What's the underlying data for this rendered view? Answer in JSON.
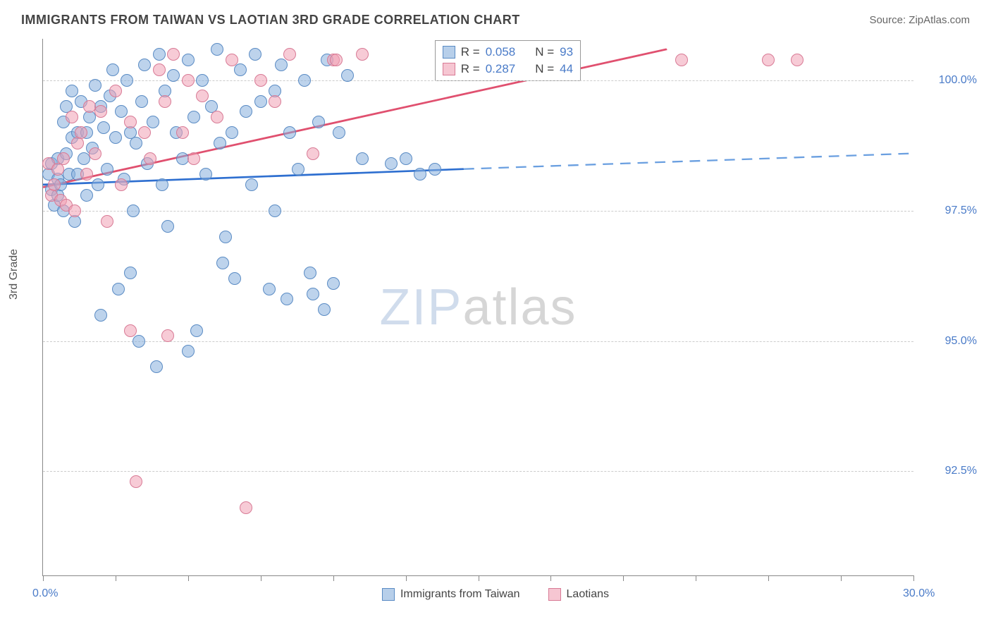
{
  "title": "IMMIGRANTS FROM TAIWAN VS LAOTIAN 3RD GRADE CORRELATION CHART",
  "source_label": "Source: ZipAtlas.com",
  "y_axis_title": "3rd Grade",
  "chart": {
    "type": "scatter",
    "xlim": [
      0,
      30
    ],
    "ylim": [
      90.5,
      100.8
    ],
    "xtick_values": [
      0,
      2.5,
      5,
      7.5,
      10,
      12.5,
      15,
      17.5,
      20,
      22.5,
      25,
      27.5,
      30
    ],
    "xtick_labels": {
      "0": "0.0%",
      "30": "30.0%"
    },
    "ytick_values": [
      92.5,
      95.0,
      97.5,
      100.0
    ],
    "ytick_labels": [
      "92.5%",
      "95.0%",
      "97.5%",
      "100.0%"
    ],
    "grid_color": "#cccccc",
    "background_color": "#ffffff",
    "axis_color": "#888888",
    "label_color": "#4a7bc8",
    "marker_size": 18,
    "series": [
      {
        "name": "Immigrants from Taiwan",
        "color_fill": "rgba(135,175,220,0.55)",
        "color_stroke": "#5a8bc4",
        "trend_color": "#2e6fd0",
        "trend_dash_color": "#6a9fe0",
        "R": "0.058",
        "N": "93",
        "trend": {
          "x0": 0,
          "y0": 98.0,
          "x1_solid": 14.5,
          "y1_solid": 98.3,
          "x1_dash": 30,
          "y1_dash": 98.6
        },
        "points": [
          [
            0.2,
            98.2
          ],
          [
            0.3,
            97.9
          ],
          [
            0.3,
            98.4
          ],
          [
            0.4,
            97.6
          ],
          [
            0.5,
            98.1
          ],
          [
            0.5,
            98.5
          ],
          [
            0.5,
            97.8
          ],
          [
            0.6,
            98.0
          ],
          [
            0.7,
            99.2
          ],
          [
            0.7,
            97.5
          ],
          [
            0.8,
            98.6
          ],
          [
            0.8,
            99.5
          ],
          [
            0.9,
            98.2
          ],
          [
            1.0,
            99.8
          ],
          [
            1.0,
            98.9
          ],
          [
            1.1,
            97.3
          ],
          [
            1.2,
            99.0
          ],
          [
            1.2,
            98.2
          ],
          [
            1.3,
            99.6
          ],
          [
            1.4,
            98.5
          ],
          [
            1.5,
            99.0
          ],
          [
            1.5,
            97.8
          ],
          [
            1.6,
            99.3
          ],
          [
            1.7,
            98.7
          ],
          [
            1.8,
            99.9
          ],
          [
            1.9,
            98.0
          ],
          [
            2.0,
            99.5
          ],
          [
            2.0,
            95.5
          ],
          [
            2.1,
            99.1
          ],
          [
            2.2,
            98.3
          ],
          [
            2.3,
            99.7
          ],
          [
            2.4,
            100.2
          ],
          [
            2.5,
            98.9
          ],
          [
            2.6,
            96.0
          ],
          [
            2.7,
            99.4
          ],
          [
            2.8,
            98.1
          ],
          [
            2.9,
            100.0
          ],
          [
            3.0,
            99.0
          ],
          [
            3.0,
            96.3
          ],
          [
            3.1,
            97.5
          ],
          [
            3.2,
            98.8
          ],
          [
            3.3,
            95.0
          ],
          [
            3.4,
            99.6
          ],
          [
            3.5,
            100.3
          ],
          [
            3.6,
            98.4
          ],
          [
            3.8,
            99.2
          ],
          [
            3.9,
            94.5
          ],
          [
            4.0,
            100.5
          ],
          [
            4.1,
            98.0
          ],
          [
            4.2,
            99.8
          ],
          [
            4.3,
            97.2
          ],
          [
            4.5,
            100.1
          ],
          [
            4.6,
            99.0
          ],
          [
            4.8,
            98.5
          ],
          [
            5.0,
            100.4
          ],
          [
            5.0,
            94.8
          ],
          [
            5.2,
            99.3
          ],
          [
            5.3,
            95.2
          ],
          [
            5.5,
            100.0
          ],
          [
            5.6,
            98.2
          ],
          [
            5.8,
            99.5
          ],
          [
            6.0,
            100.6
          ],
          [
            6.1,
            98.8
          ],
          [
            6.2,
            96.5
          ],
          [
            6.3,
            97.0
          ],
          [
            6.5,
            99.0
          ],
          [
            6.6,
            96.2
          ],
          [
            6.8,
            100.2
          ],
          [
            7.0,
            99.4
          ],
          [
            7.2,
            98.0
          ],
          [
            7.3,
            100.5
          ],
          [
            7.5,
            99.6
          ],
          [
            7.8,
            96.0
          ],
          [
            8.0,
            99.8
          ],
          [
            8.0,
            97.5
          ],
          [
            8.2,
            100.3
          ],
          [
            8.4,
            95.8
          ],
          [
            8.5,
            99.0
          ],
          [
            8.8,
            98.3
          ],
          [
            9.0,
            100.0
          ],
          [
            9.2,
            96.3
          ],
          [
            9.3,
            95.9
          ],
          [
            9.5,
            99.2
          ],
          [
            9.7,
            95.6
          ],
          [
            9.8,
            100.4
          ],
          [
            10.0,
            96.1
          ],
          [
            10.2,
            99.0
          ],
          [
            10.5,
            100.1
          ],
          [
            11.0,
            98.5
          ],
          [
            12.0,
            98.4
          ],
          [
            12.5,
            98.5
          ],
          [
            13.0,
            98.2
          ],
          [
            13.5,
            98.3
          ]
        ]
      },
      {
        "name": "Laotians",
        "color_fill": "rgba(240,160,180,0.55)",
        "color_stroke": "#d87a95",
        "trend_color": "#e0506f",
        "R": "0.287",
        "N": "44",
        "trend": {
          "x0": 0,
          "y0": 97.95,
          "x1_solid": 21.5,
          "y1_solid": 100.6
        },
        "points": [
          [
            0.2,
            98.4
          ],
          [
            0.3,
            97.8
          ],
          [
            0.4,
            98.0
          ],
          [
            0.5,
            98.3
          ],
          [
            0.6,
            97.7
          ],
          [
            0.7,
            98.5
          ],
          [
            0.8,
            97.6
          ],
          [
            1.0,
            99.3
          ],
          [
            1.1,
            97.5
          ],
          [
            1.2,
            98.8
          ],
          [
            1.3,
            99.0
          ],
          [
            1.5,
            98.2
          ],
          [
            1.6,
            99.5
          ],
          [
            1.8,
            98.6
          ],
          [
            2.0,
            99.4
          ],
          [
            2.2,
            97.3
          ],
          [
            2.5,
            99.8
          ],
          [
            2.7,
            98.0
          ],
          [
            3.0,
            95.2
          ],
          [
            3.0,
            99.2
          ],
          [
            3.2,
            92.3
          ],
          [
            3.5,
            99.0
          ],
          [
            3.7,
            98.5
          ],
          [
            4.0,
            100.2
          ],
          [
            4.2,
            99.6
          ],
          [
            4.3,
            95.1
          ],
          [
            4.5,
            100.5
          ],
          [
            4.8,
            99.0
          ],
          [
            5.0,
            100.0
          ],
          [
            5.2,
            98.5
          ],
          [
            5.5,
            99.7
          ],
          [
            6.0,
            99.3
          ],
          [
            6.5,
            100.4
          ],
          [
            7.0,
            91.8
          ],
          [
            7.5,
            100.0
          ],
          [
            8.0,
            99.6
          ],
          [
            8.5,
            100.5
          ],
          [
            9.3,
            98.6
          ],
          [
            10.0,
            100.4
          ],
          [
            10.1,
            100.4
          ],
          [
            11.0,
            100.5
          ],
          [
            22.0,
            100.4
          ],
          [
            25.0,
            100.4
          ],
          [
            26.0,
            100.4
          ]
        ]
      }
    ]
  },
  "stat_legend": {
    "rows": [
      {
        "swatch": "blue",
        "R_label": "R =",
        "R_val": "0.058",
        "N_label": "N =",
        "N_val": "93"
      },
      {
        "swatch": "pink",
        "R_label": "R =",
        "R_val": "0.287",
        "N_label": "N =",
        "N_val": "44"
      }
    ]
  },
  "bottom_legend": {
    "items": [
      {
        "swatch": "blue",
        "label": "Immigrants from Taiwan"
      },
      {
        "swatch": "pink",
        "label": "Laotians"
      }
    ]
  },
  "watermark": {
    "part1": "ZIP",
    "part2": "atlas"
  }
}
